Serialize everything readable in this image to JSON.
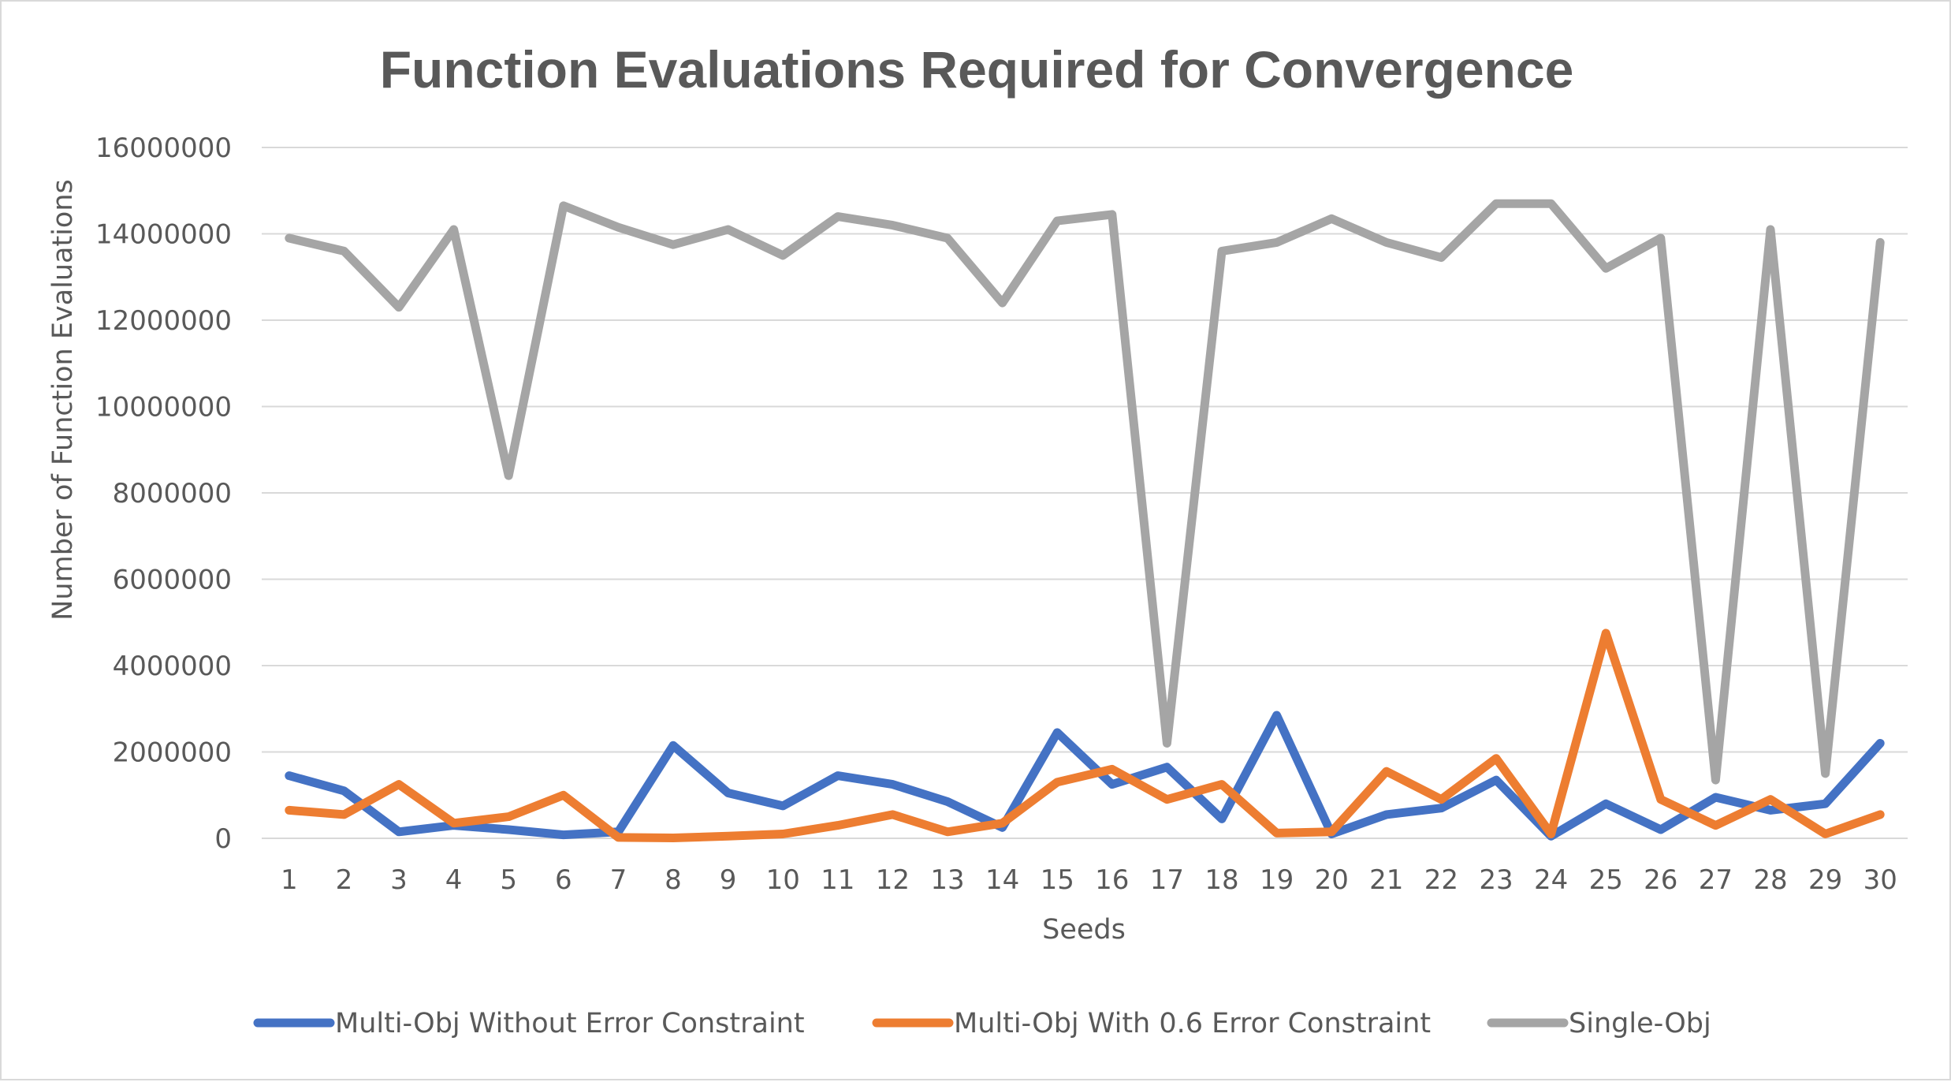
{
  "chart_data": {
    "type": "line",
    "title": "Function Evaluations Required for Convergence",
    "xlabel": "Seeds",
    "ylabel": "Number of Function Evaluations",
    "ylim": [
      0,
      16000000
    ],
    "yticks": [
      "0",
      "2000000",
      "4000000",
      "6000000",
      "8000000",
      "10000000",
      "12000000",
      "14000000",
      "16000000"
    ],
    "categories": [
      "1",
      "2",
      "3",
      "4",
      "5",
      "6",
      "7",
      "8",
      "9",
      "10",
      "11",
      "12",
      "13",
      "14",
      "15",
      "16",
      "17",
      "18",
      "19",
      "20",
      "21",
      "22",
      "23",
      "24",
      "25",
      "26",
      "27",
      "28",
      "29",
      "30"
    ],
    "grid": true,
    "legend_position": "bottom",
    "series": [
      {
        "name": "Multi-Obj Without Error Constraint",
        "color": "#4472C4",
        "values": [
          1450000,
          1100000,
          150000,
          300000,
          200000,
          80000,
          150000,
          2150000,
          1050000,
          750000,
          1450000,
          1250000,
          850000,
          250000,
          2450000,
          1250000,
          1650000,
          450000,
          2850000,
          100000,
          550000,
          700000,
          1350000,
          50000,
          800000,
          200000,
          950000,
          650000,
          800000,
          2200000
        ]
      },
      {
        "name": "Multi-Obj With 0.6 Error Constraint",
        "color": "#ED7D31",
        "values": [
          650000,
          550000,
          1250000,
          350000,
          500000,
          1000000,
          20000,
          10000,
          50000,
          100000,
          300000,
          550000,
          150000,
          350000,
          1300000,
          1600000,
          900000,
          1250000,
          120000,
          150000,
          1550000,
          900000,
          1850000,
          100000,
          4750000,
          900000,
          300000,
          900000,
          100000,
          550000
        ]
      },
      {
        "name": "Single-Obj",
        "color": "#A5A5A5",
        "values": [
          13900000,
          13600000,
          12300000,
          14100000,
          8400000,
          14650000,
          14150000,
          13750000,
          14100000,
          13500000,
          14400000,
          14200000,
          13900000,
          12400000,
          14300000,
          14450000,
          2200000,
          13600000,
          13800000,
          14350000,
          13800000,
          13450000,
          14700000,
          14700000,
          13200000,
          13900000,
          1350000,
          14100000,
          1500000,
          13800000
        ]
      }
    ]
  }
}
